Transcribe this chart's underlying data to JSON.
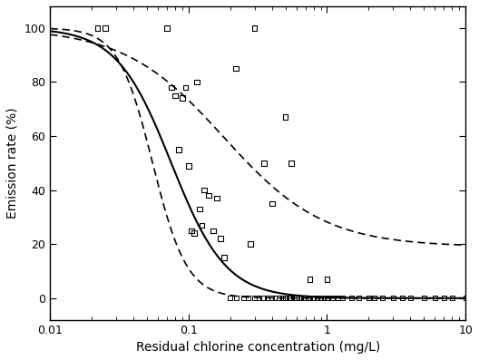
{
  "title": "",
  "xlabel": "Residual chlorine concentration (mg/L)",
  "ylabel": "Emission rate (%)",
  "xlim": [
    0.01,
    10
  ],
  "ylim": [
    -8,
    108
  ],
  "yticks": [
    0,
    20,
    40,
    60,
    80,
    100
  ],
  "sigmoid_ec50": 0.075,
  "sigmoid_n": 2.2,
  "sigmoid_ymax": 100,
  "sigmoid_ymin": 0,
  "ci_upper_ec50": 0.18,
  "ci_upper_n": 1.2,
  "ci_upper_ymax": 100,
  "ci_upper_ymin": 19,
  "ci_lower_ec50": 0.055,
  "ci_lower_n": 3.5,
  "ci_lower_ymax": 100,
  "ci_lower_ymin": 0,
  "scatter_x": [
    0.022,
    0.025,
    0.07,
    0.075,
    0.08,
    0.085,
    0.09,
    0.095,
    0.1,
    0.105,
    0.11,
    0.115,
    0.12,
    0.125,
    0.13,
    0.14,
    0.15,
    0.16,
    0.17,
    0.18,
    0.22,
    0.28,
    0.3,
    0.35,
    0.4,
    0.5,
    0.55,
    0.75,
    1.0
  ],
  "scatter_y": [
    100,
    100,
    100,
    78,
    75,
    55,
    74,
    78,
    49,
    25,
    24,
    80,
    33,
    27,
    40,
    38,
    25,
    37,
    22,
    15,
    85,
    20,
    100,
    50,
    35,
    67,
    50,
    7,
    7
  ],
  "zero_x": [
    0.2,
    0.22,
    0.25,
    0.27,
    0.3,
    0.32,
    0.35,
    0.37,
    0.4,
    0.42,
    0.45,
    0.48,
    0.5,
    0.53,
    0.55,
    0.58,
    0.6,
    0.63,
    0.65,
    0.68,
    0.7,
    0.73,
    0.75,
    0.8,
    0.85,
    0.9,
    0.95,
    1.0,
    1.1,
    1.2,
    1.3,
    1.5,
    1.7,
    2.0,
    2.2,
    2.5,
    3.0,
    3.5,
    4.0,
    5.0,
    6.0,
    7.0,
    8.0,
    10.0
  ],
  "background_color": "#ffffff"
}
